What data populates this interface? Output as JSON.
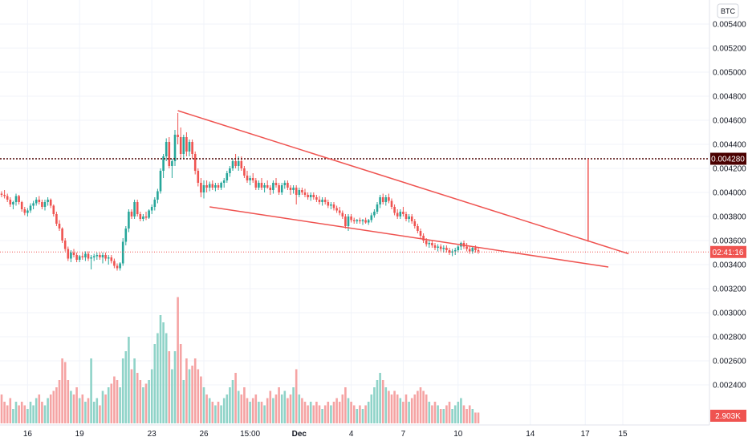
{
  "currency_button": "BTC",
  "colors": {
    "up": "#26a69a",
    "down": "#ef5350",
    "up_volume": "#8fd3c8",
    "down_volume": "#f5a3a3",
    "pattern": "#ef5350",
    "resistance": "#4a0000",
    "last_price_badge": "#ef5350",
    "resistance_badge": "#4a0000",
    "grid": "#f0f3fa"
  },
  "resistance_badge": "0.004280",
  "countdown_badge": "02:41:16",
  "volume_badge": "2.903K",
  "chart_data": {
    "type": "candlestick",
    "title": "",
    "xlabel": "",
    "ylabel": "",
    "y_ticks": [
      "0.005400",
      "0.005200",
      "0.005000",
      "0.004800",
      "0.004600",
      "0.004400",
      "0.004200",
      "0.004000",
      "0.003800",
      "0.003600",
      "0.003400",
      "0.003200",
      "0.003000",
      "0.002800",
      "0.002600",
      "0.002400"
    ],
    "x_ticks": [
      {
        "label": "16",
        "bar": 9,
        "bold": false
      },
      {
        "label": "19",
        "bar": 27,
        "bold": false
      },
      {
        "label": "23",
        "bar": 52,
        "bold": false
      },
      {
        "label": "26",
        "bar": 70,
        "bold": false
      },
      {
        "label": "15:00",
        "bar": 86,
        "bold": false
      },
      {
        "label": "Dec",
        "bar": 103,
        "bold": true
      },
      {
        "label": "4",
        "bar": 121,
        "bold": false
      },
      {
        "label": "7",
        "bar": 139,
        "bold": false
      },
      {
        "label": "10",
        "bar": 158,
        "bold": false
      },
      {
        "label": "14",
        "bar": 183,
        "bold": false
      },
      {
        "label": "17",
        "bar": 202,
        "bold": false
      },
      {
        "label": "15",
        "bar": 215,
        "bold": false
      }
    ],
    "ylim": [
      0.00224,
      0.00554
    ],
    "volume_max_k": 30,
    "resistance_level": 0.00428,
    "last_price": 0.003505,
    "candles": [
      [
        0.00399,
        0.00401,
        0.00396,
        0.00398,
        8
      ],
      [
        0.00398,
        0.00402,
        0.00395,
        0.00397,
        6
      ],
      [
        0.00397,
        0.00399,
        0.00392,
        0.00394,
        5
      ],
      [
        0.00394,
        0.00396,
        0.00388,
        0.0039,
        7
      ],
      [
        0.0039,
        0.00393,
        0.00386,
        0.00392,
        4
      ],
      [
        0.00392,
        0.00399,
        0.00389,
        0.00397,
        6
      ],
      [
        0.00397,
        0.00398,
        0.0039,
        0.00392,
        5
      ],
      [
        0.00392,
        0.00393,
        0.00384,
        0.00386,
        6
      ],
      [
        0.00386,
        0.00388,
        0.00381,
        0.00383,
        5
      ],
      [
        0.00383,
        0.00387,
        0.0038,
        0.00385,
        4
      ],
      [
        0.00385,
        0.00391,
        0.00383,
        0.00389,
        6
      ],
      [
        0.00389,
        0.00393,
        0.00386,
        0.00391,
        5
      ],
      [
        0.00391,
        0.00396,
        0.00389,
        0.00394,
        7
      ],
      [
        0.00394,
        0.00397,
        0.0039,
        0.00392,
        8
      ],
      [
        0.00392,
        0.00394,
        0.00386,
        0.00388,
        6
      ],
      [
        0.00388,
        0.00394,
        0.00385,
        0.00392,
        5
      ],
      [
        0.00392,
        0.00396,
        0.00389,
        0.00394,
        7
      ],
      [
        0.00394,
        0.00395,
        0.00387,
        0.00389,
        8
      ],
      [
        0.00389,
        0.0039,
        0.0038,
        0.00382,
        9
      ],
      [
        0.00382,
        0.00384,
        0.00372,
        0.00374,
        10
      ],
      [
        0.00374,
        0.00377,
        0.00368,
        0.0037,
        12
      ],
      [
        0.0037,
        0.00371,
        0.00358,
        0.0036,
        18
      ],
      [
        0.0036,
        0.00362,
        0.00351,
        0.00353,
        17
      ],
      [
        0.00353,
        0.00355,
        0.00343,
        0.00345,
        12
      ],
      [
        0.00345,
        0.00352,
        0.00342,
        0.0035,
        9
      ],
      [
        0.0035,
        0.00353,
        0.00346,
        0.00348,
        8
      ],
      [
        0.00348,
        0.0035,
        0.00342,
        0.00344,
        10
      ],
      [
        0.00344,
        0.00348,
        0.00342,
        0.00347,
        7
      ],
      [
        0.00347,
        0.0035,
        0.00344,
        0.00346,
        8
      ],
      [
        0.00346,
        0.00351,
        0.00343,
        0.00349,
        6
      ],
      [
        0.00349,
        0.00351,
        0.00343,
        0.00345,
        7
      ],
      [
        0.00345,
        0.00348,
        0.00336,
        0.00346,
        18
      ],
      [
        0.00346,
        0.00349,
        0.00343,
        0.00347,
        6
      ],
      [
        0.00347,
        0.0035,
        0.00344,
        0.00348,
        7
      ],
      [
        0.00348,
        0.0035,
        0.00344,
        0.00346,
        5
      ],
      [
        0.00346,
        0.0035,
        0.00341,
        0.00348,
        9
      ],
      [
        0.00348,
        0.0035,
        0.00343,
        0.00345,
        8
      ],
      [
        0.00345,
        0.00348,
        0.0034,
        0.00346,
        10
      ],
      [
        0.00346,
        0.00348,
        0.00341,
        0.00343,
        11
      ],
      [
        0.00343,
        0.00345,
        0.00337,
        0.00339,
        13
      ],
      [
        0.00339,
        0.00341,
        0.00335,
        0.00337,
        12
      ],
      [
        0.00337,
        0.00342,
        0.00335,
        0.00341,
        10
      ],
      [
        0.00341,
        0.00362,
        0.00339,
        0.00359,
        18
      ],
      [
        0.00359,
        0.00372,
        0.00356,
        0.0037,
        20
      ],
      [
        0.0037,
        0.00386,
        0.00367,
        0.00384,
        24
      ],
      [
        0.00384,
        0.00386,
        0.00378,
        0.0038,
        15
      ],
      [
        0.0038,
        0.00394,
        0.00378,
        0.00392,
        18
      ],
      [
        0.00392,
        0.00394,
        0.0038,
        0.00382,
        14
      ],
      [
        0.00382,
        0.00384,
        0.00376,
        0.00378,
        12
      ],
      [
        0.00378,
        0.00382,
        0.00376,
        0.0038,
        10
      ],
      [
        0.0038,
        0.00384,
        0.00377,
        0.00379,
        11
      ],
      [
        0.00379,
        0.00386,
        0.00378,
        0.00385,
        12
      ],
      [
        0.00385,
        0.0039,
        0.00382,
        0.00388,
        15
      ],
      [
        0.00388,
        0.00396,
        0.00385,
        0.00394,
        22
      ],
      [
        0.00394,
        0.00403,
        0.00391,
        0.00401,
        25
      ],
      [
        0.00401,
        0.0042,
        0.00399,
        0.00418,
        30
      ],
      [
        0.00418,
        0.00432,
        0.00412,
        0.0043,
        28
      ],
      [
        0.0043,
        0.00445,
        0.00426,
        0.00442,
        25
      ],
      [
        0.00442,
        0.00446,
        0.0042,
        0.00422,
        20
      ],
      [
        0.00422,
        0.00428,
        0.00412,
        0.00426,
        15
      ],
      [
        0.00426,
        0.00452,
        0.00422,
        0.00448,
        20
      ],
      [
        0.00448,
        0.00466,
        0.0044,
        0.00446,
        35
      ],
      [
        0.00446,
        0.00454,
        0.00428,
        0.00432,
        22
      ],
      [
        0.00432,
        0.00448,
        0.00428,
        0.00446,
        12
      ],
      [
        0.00446,
        0.0045,
        0.0043,
        0.00434,
        18
      ],
      [
        0.00434,
        0.00444,
        0.0043,
        0.00442,
        15
      ],
      [
        0.00442,
        0.00444,
        0.00428,
        0.00432,
        16
      ],
      [
        0.00432,
        0.00434,
        0.00415,
        0.00418,
        18
      ],
      [
        0.00418,
        0.0042,
        0.00405,
        0.00408,
        15
      ],
      [
        0.00408,
        0.00412,
        0.00396,
        0.004,
        13
      ],
      [
        0.004,
        0.0041,
        0.00395,
        0.00406,
        10
      ],
      [
        0.00406,
        0.0041,
        0.004,
        0.00404,
        8
      ],
      [
        0.00404,
        0.00409,
        0.00401,
        0.00407,
        7
      ],
      [
        0.00407,
        0.0041,
        0.00402,
        0.00404,
        6
      ],
      [
        0.00404,
        0.00408,
        0.00401,
        0.00406,
        5
      ],
      [
        0.00406,
        0.00408,
        0.00402,
        0.00404,
        6
      ],
      [
        0.00404,
        0.00409,
        0.00402,
        0.00408,
        5
      ],
      [
        0.00408,
        0.00412,
        0.00404,
        0.0041,
        7
      ],
      [
        0.0041,
        0.00418,
        0.00408,
        0.00416,
        8
      ],
      [
        0.00416,
        0.00422,
        0.00413,
        0.0042,
        10
      ],
      [
        0.0042,
        0.00428,
        0.00418,
        0.00426,
        12
      ],
      [
        0.00426,
        0.00432,
        0.0042,
        0.00422,
        14
      ],
      [
        0.00422,
        0.0043,
        0.00418,
        0.00426,
        9
      ],
      [
        0.00426,
        0.0043,
        0.00418,
        0.0042,
        8
      ],
      [
        0.0042,
        0.00422,
        0.00412,
        0.00414,
        10
      ],
      [
        0.00414,
        0.00418,
        0.00408,
        0.0041,
        7
      ],
      [
        0.0041,
        0.00414,
        0.00406,
        0.00412,
        6
      ],
      [
        0.00412,
        0.00416,
        0.00408,
        0.0041,
        7
      ],
      [
        0.0041,
        0.00412,
        0.00402,
        0.00404,
        8
      ],
      [
        0.00404,
        0.0041,
        0.00402,
        0.00408,
        6
      ],
      [
        0.00408,
        0.00412,
        0.00402,
        0.00404,
        6
      ],
      [
        0.00404,
        0.00408,
        0.004,
        0.00406,
        5
      ],
      [
        0.00406,
        0.0041,
        0.00403,
        0.00404,
        7
      ],
      [
        0.00404,
        0.00406,
        0.00398,
        0.00402,
        9
      ],
      [
        0.00402,
        0.0041,
        0.00399,
        0.00408,
        7
      ],
      [
        0.00408,
        0.00412,
        0.00404,
        0.00406,
        8
      ],
      [
        0.00406,
        0.00408,
        0.00398,
        0.004,
        10
      ],
      [
        0.004,
        0.00408,
        0.00398,
        0.00406,
        8
      ],
      [
        0.00406,
        0.0041,
        0.00403,
        0.00408,
        9
      ],
      [
        0.00408,
        0.0041,
        0.00402,
        0.00404,
        7
      ],
      [
        0.00404,
        0.00406,
        0.00398,
        0.00402,
        8
      ],
      [
        0.00402,
        0.00406,
        0.00399,
        0.00404,
        10
      ],
      [
        0.00404,
        0.00406,
        0.0039,
        0.00398,
        15
      ],
      [
        0.00398,
        0.00404,
        0.00396,
        0.00402,
        8
      ],
      [
        0.00402,
        0.00404,
        0.00398,
        0.004,
        7
      ],
      [
        0.004,
        0.00403,
        0.00396,
        0.00398,
        6
      ],
      [
        0.00398,
        0.004,
        0.00394,
        0.00396,
        5
      ],
      [
        0.00396,
        0.004,
        0.00393,
        0.00398,
        6
      ],
      [
        0.00398,
        0.004,
        0.00394,
        0.00396,
        5
      ],
      [
        0.00396,
        0.00398,
        0.00392,
        0.00394,
        6
      ],
      [
        0.00394,
        0.00397,
        0.0039,
        0.00392,
        5
      ],
      [
        0.00392,
        0.00396,
        0.00389,
        0.00394,
        4
      ],
      [
        0.00394,
        0.00396,
        0.0039,
        0.00392,
        5
      ],
      [
        0.00392,
        0.00394,
        0.00387,
        0.00389,
        6
      ],
      [
        0.00389,
        0.00392,
        0.00386,
        0.0039,
        5
      ],
      [
        0.0039,
        0.00392,
        0.00385,
        0.00387,
        6
      ],
      [
        0.00387,
        0.00389,
        0.00383,
        0.00385,
        7
      ],
      [
        0.00385,
        0.00388,
        0.00381,
        0.00383,
        6
      ],
      [
        0.00383,
        0.00385,
        0.00378,
        0.0038,
        8
      ],
      [
        0.0038,
        0.00382,
        0.0037,
        0.00372,
        10
      ],
      [
        0.00372,
        0.00382,
        0.00368,
        0.0038,
        7
      ],
      [
        0.0038,
        0.00382,
        0.00375,
        0.00377,
        6
      ],
      [
        0.00377,
        0.00379,
        0.00374,
        0.00376,
        5
      ],
      [
        0.00376,
        0.00378,
        0.00374,
        0.00377,
        4
      ],
      [
        0.00377,
        0.00379,
        0.00374,
        0.00376,
        5
      ],
      [
        0.00376,
        0.00378,
        0.00373,
        0.00377,
        4
      ],
      [
        0.00377,
        0.00379,
        0.00374,
        0.00375,
        5
      ],
      [
        0.00375,
        0.00378,
        0.00373,
        0.00377,
        6
      ],
      [
        0.00377,
        0.00383,
        0.00375,
        0.00381,
        8
      ],
      [
        0.00381,
        0.00386,
        0.00379,
        0.00384,
        10
      ],
      [
        0.00384,
        0.00392,
        0.00382,
        0.0039,
        12
      ],
      [
        0.0039,
        0.00398,
        0.00387,
        0.00396,
        14
      ],
      [
        0.00396,
        0.00399,
        0.0039,
        0.00392,
        12
      ],
      [
        0.00392,
        0.00398,
        0.00389,
        0.00396,
        10
      ],
      [
        0.00396,
        0.00399,
        0.00391,
        0.00393,
        9
      ],
      [
        0.00393,
        0.00395,
        0.00386,
        0.00388,
        8
      ],
      [
        0.00388,
        0.0039,
        0.00381,
        0.00383,
        9
      ],
      [
        0.00383,
        0.00386,
        0.00378,
        0.0038,
        8
      ],
      [
        0.0038,
        0.00386,
        0.00378,
        0.00384,
        7
      ],
      [
        0.00384,
        0.00388,
        0.0038,
        0.00382,
        6
      ],
      [
        0.00382,
        0.00384,
        0.00376,
        0.00378,
        8
      ],
      [
        0.00378,
        0.00382,
        0.00375,
        0.0038,
        6
      ],
      [
        0.0038,
        0.00382,
        0.00374,
        0.00376,
        7
      ],
      [
        0.00376,
        0.00378,
        0.0037,
        0.00372,
        8
      ],
      [
        0.00372,
        0.00374,
        0.00366,
        0.00368,
        9
      ],
      [
        0.00368,
        0.0037,
        0.00362,
        0.00364,
        10
      ],
      [
        0.00364,
        0.00366,
        0.00358,
        0.0036,
        9
      ],
      [
        0.0036,
        0.00362,
        0.00355,
        0.00357,
        8
      ],
      [
        0.00357,
        0.0036,
        0.00354,
        0.00358,
        6
      ],
      [
        0.00358,
        0.0036,
        0.00354,
        0.00356,
        5
      ],
      [
        0.00356,
        0.00358,
        0.00352,
        0.00354,
        6
      ],
      [
        0.00354,
        0.00357,
        0.00351,
        0.00355,
        5
      ],
      [
        0.00355,
        0.00357,
        0.00351,
        0.00353,
        4
      ],
      [
        0.00353,
        0.00356,
        0.0035,
        0.00354,
        4
      ],
      [
        0.00354,
        0.00356,
        0.0035,
        0.00352,
        5
      ],
      [
        0.00352,
        0.00354,
        0.00348,
        0.0035,
        6
      ],
      [
        0.0035,
        0.00353,
        0.00347,
        0.00351,
        4
      ],
      [
        0.00351,
        0.00354,
        0.00348,
        0.00352,
        5
      ],
      [
        0.00352,
        0.00356,
        0.0035,
        0.00355,
        6
      ],
      [
        0.00355,
        0.00359,
        0.00352,
        0.00358,
        7
      ],
      [
        0.00358,
        0.0036,
        0.00353,
        0.00355,
        5
      ],
      [
        0.00355,
        0.00358,
        0.00351,
        0.00353,
        4
      ],
      [
        0.00353,
        0.00355,
        0.00349,
        0.00351,
        5
      ],
      [
        0.00351,
        0.00355,
        0.00349,
        0.00354,
        4
      ],
      [
        0.00354,
        0.00356,
        0.0035,
        0.00352,
        3
      ],
      [
        0.00352,
        0.00354,
        0.00349,
        0.00351,
        3
      ]
    ],
    "pattern_lines": [
      {
        "from": [
          61,
          0.00468
        ],
        "to": [
          217,
          0.00349
        ]
      },
      {
        "from": [
          72,
          0.00388
        ],
        "to": [
          210,
          0.00338
        ]
      }
    ],
    "projection_line": {
      "bar": 203,
      "from": 0.00428,
      "to": 0.00359
    }
  }
}
